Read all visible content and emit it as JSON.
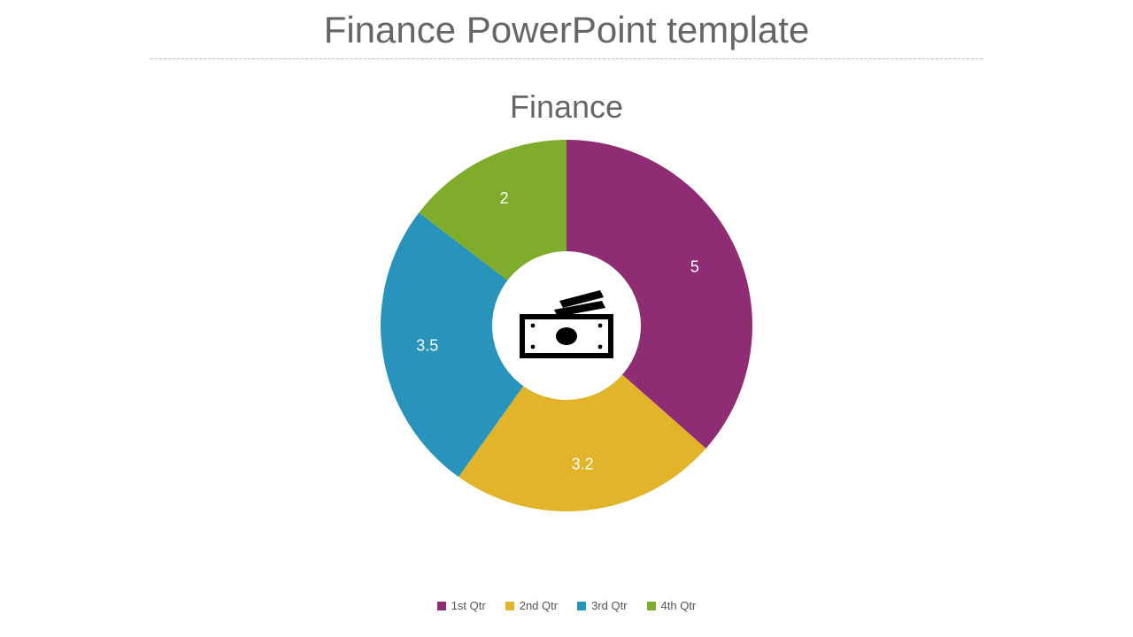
{
  "title": "Finance PowerPoint template",
  "chart": {
    "type": "donut",
    "title": "Finance",
    "background_color": "#ffffff",
    "title_color": "#666666",
    "title_fontsize": 36,
    "inner_radius_ratio": 0.4,
    "outer_radius": 210,
    "label_color": "#ffffff",
    "label_fontsize": 18,
    "slices": [
      {
        "label": "1st Qtr",
        "value": 5,
        "display": "5",
        "color": "#8e2d74"
      },
      {
        "label": "2nd Qtr",
        "value": 3.2,
        "display": "3.2",
        "color": "#e2b42a"
      },
      {
        "label": "3rd Qtr",
        "value": 3.5,
        "display": "3.5",
        "color": "#2994bb"
      },
      {
        "label": "4th Qtr",
        "value": 2,
        "display": "2",
        "color": "#7fac2b"
      }
    ],
    "legend": {
      "position": "bottom",
      "fontsize": 13,
      "text_color": "#555555",
      "swatch_size": 10,
      "items": [
        {
          "label": "1st Qtr",
          "color": "#8e2d74"
        },
        {
          "label": "2nd Qtr",
          "color": "#e2b42a"
        },
        {
          "label": "3rd Qtr",
          "color": "#2994bb"
        },
        {
          "label": "4th Qtr",
          "color": "#7fac2b"
        }
      ]
    },
    "center_icon": {
      "name": "money-icon",
      "color": "#000000"
    }
  },
  "divider_color": "#bbbbbb",
  "page_title_color": "#666666",
  "page_title_fontsize": 42
}
